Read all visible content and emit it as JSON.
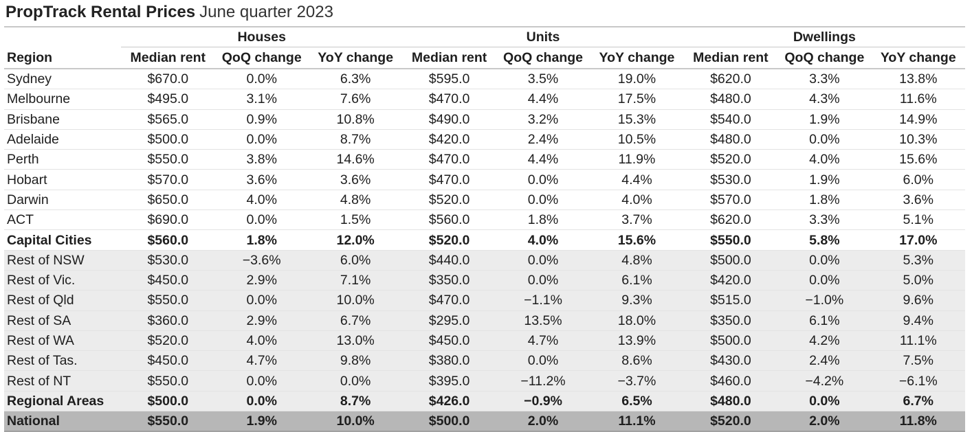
{
  "title": {
    "bold": "PropTrack Rental Prices",
    "light": "June quarter 2023"
  },
  "groups": [
    "Houses",
    "Units",
    "Dwellings"
  ],
  "columns": {
    "region": "Region",
    "metrics": [
      "Median rent",
      "QoQ change",
      "YoY change"
    ]
  },
  "rows": [
    {
      "region": "Sydney",
      "values": [
        "$670.0",
        "0.0%",
        "6.3%",
        "$595.0",
        "3.5%",
        "19.0%",
        "$620.0",
        "3.3%",
        "13.8%"
      ]
    },
    {
      "region": "Melbourne",
      "values": [
        "$495.0",
        "3.1%",
        "7.6%",
        "$470.0",
        "4.4%",
        "17.5%",
        "$480.0",
        "4.3%",
        "11.6%"
      ]
    },
    {
      "region": "Brisbane",
      "values": [
        "$565.0",
        "0.9%",
        "10.8%",
        "$490.0",
        "3.2%",
        "15.3%",
        "$540.0",
        "1.9%",
        "14.9%"
      ]
    },
    {
      "region": "Adelaide",
      "values": [
        "$500.0",
        "0.0%",
        "8.7%",
        "$420.0",
        "2.4%",
        "10.5%",
        "$480.0",
        "0.0%",
        "10.3%"
      ]
    },
    {
      "region": "Perth",
      "values": [
        "$550.0",
        "3.8%",
        "14.6%",
        "$470.0",
        "4.4%",
        "11.9%",
        "$520.0",
        "4.0%",
        "15.6%"
      ]
    },
    {
      "region": "Hobart",
      "values": [
        "$570.0",
        "3.6%",
        "3.6%",
        "$470.0",
        "0.0%",
        "4.4%",
        "$530.0",
        "1.9%",
        "6.0%"
      ]
    },
    {
      "region": "Darwin",
      "values": [
        "$650.0",
        "4.0%",
        "4.8%",
        "$520.0",
        "0.0%",
        "4.0%",
        "$570.0",
        "1.8%",
        "3.6%"
      ]
    },
    {
      "region": "ACT",
      "values": [
        "$690.0",
        "0.0%",
        "1.5%",
        "$560.0",
        "1.8%",
        "3.7%",
        "$620.0",
        "3.3%",
        "5.1%"
      ]
    },
    {
      "region": "Capital Cities",
      "style": "bold",
      "values": [
        "$560.0",
        "1.8%",
        "12.0%",
        "$520.0",
        "4.0%",
        "15.6%",
        "$550.0",
        "5.8%",
        "17.0%"
      ]
    },
    {
      "region": "Rest of NSW",
      "style": "shade",
      "values": [
        "$530.0",
        "−3.6%",
        "6.0%",
        "$440.0",
        "0.0%",
        "4.8%",
        "$500.0",
        "0.0%",
        "5.3%"
      ]
    },
    {
      "region": "Rest of Vic.",
      "style": "shade",
      "values": [
        "$450.0",
        "2.9%",
        "7.1%",
        "$350.0",
        "0.0%",
        "6.1%",
        "$420.0",
        "0.0%",
        "5.0%"
      ]
    },
    {
      "region": "Rest of Qld",
      "style": "shade",
      "values": [
        "$550.0",
        "0.0%",
        "10.0%",
        "$470.0",
        "−1.1%",
        "9.3%",
        "$515.0",
        "−1.0%",
        "9.6%"
      ]
    },
    {
      "region": "Rest of SA",
      "style": "shade",
      "values": [
        "$360.0",
        "2.9%",
        "6.7%",
        "$295.0",
        "13.5%",
        "18.0%",
        "$350.0",
        "6.1%",
        "9.4%"
      ]
    },
    {
      "region": "Rest of WA",
      "style": "shade",
      "values": [
        "$520.0",
        "4.0%",
        "13.0%",
        "$450.0",
        "4.7%",
        "13.9%",
        "$500.0",
        "4.2%",
        "11.1%"
      ]
    },
    {
      "region": "Rest of Tas.",
      "style": "shade",
      "values": [
        "$450.0",
        "4.7%",
        "9.8%",
        "$380.0",
        "0.0%",
        "8.6%",
        "$430.0",
        "2.4%",
        "7.5%"
      ]
    },
    {
      "region": "Rest of NT",
      "style": "shade",
      "values": [
        "$550.0",
        "0.0%",
        "0.0%",
        "$395.0",
        "−11.2%",
        "−3.7%",
        "$460.0",
        "−4.2%",
        "−6.1%"
      ]
    },
    {
      "region": "Regional Areas",
      "style": "bold shade",
      "values": [
        "$500.0",
        "0.0%",
        "8.7%",
        "$426.0",
        "−0.9%",
        "6.5%",
        "$480.0",
        "0.0%",
        "6.7%"
      ]
    },
    {
      "region": "National",
      "style": "national",
      "values": [
        "$550.0",
        "1.9%",
        "10.0%",
        "$500.0",
        "2.0%",
        "11.1%",
        "$520.0",
        "2.0%",
        "11.8%"
      ]
    }
  ]
}
